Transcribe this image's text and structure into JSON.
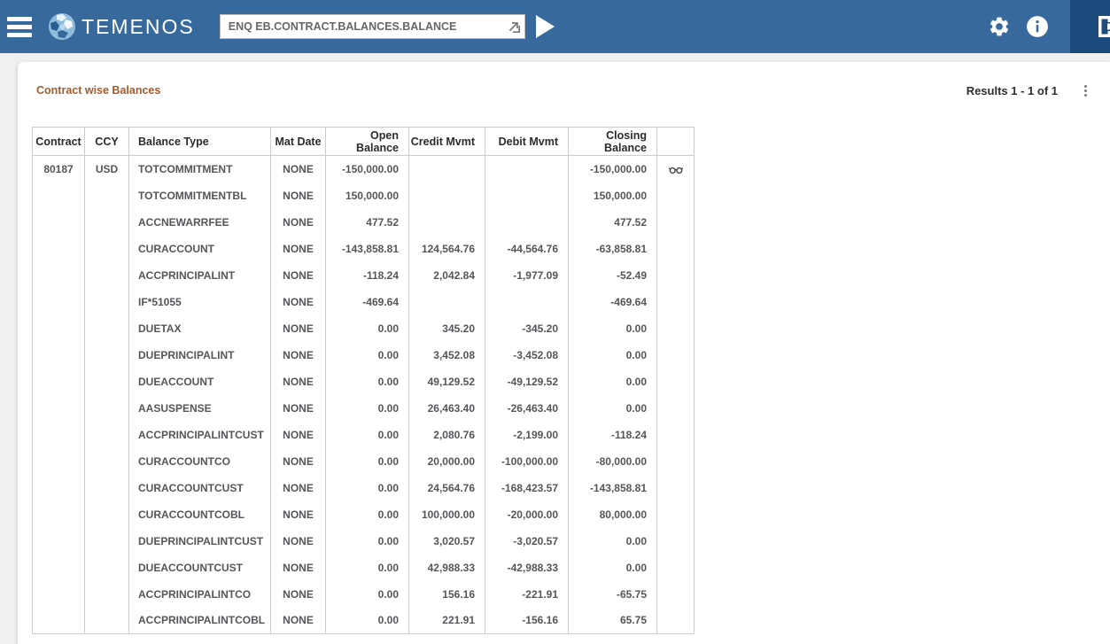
{
  "colors": {
    "header-bar": "#38699c",
    "panel-dark": "#1b4b7d",
    "title-color": "#a55b2b",
    "border-color": "#cccccc",
    "cell-text": "#54565a"
  },
  "header": {
    "brand": "TEMENOS",
    "command_input": {
      "value": "ENQ EB.CONTRACT.BALANCES.BALANCE",
      "placeholder": ""
    },
    "icons": [
      "hamburger-menu-icon",
      "globe-logo-icon",
      "launch-command-icon",
      "run-play-icon",
      "gear-icon",
      "info-icon",
      "logout-icon"
    ]
  },
  "toolbar": {
    "title": "Contract wise Balances",
    "results_label": "Results 1 - 1 of 1",
    "icons": [
      "kebab-menu-icon"
    ]
  },
  "table": {
    "columns": [
      "Contract",
      "CCY",
      "Balance Type",
      "Mat Date",
      "Open Balance",
      "Credit Mvmt",
      "Debit Mvmt",
      "Closing Balance",
      ""
    ],
    "column_aligns": [
      "ac",
      "ac",
      "al",
      "ac",
      "ar",
      "ar",
      "ar",
      "ar",
      "ic"
    ],
    "rows": [
      {
        "contract": "80187",
        "ccy": "USD",
        "balance_type": "TOTCOMMITMENT",
        "mat_date": "NONE",
        "open_balance": "-150,000.00",
        "credit_mvmt": "",
        "debit_mvmt": "",
        "closing_balance": "-150,000.00",
        "has_view_icon": true
      },
      {
        "contract": "",
        "ccy": "",
        "balance_type": "TOTCOMMITMENTBL",
        "mat_date": "NONE",
        "open_balance": "150,000.00",
        "credit_mvmt": "",
        "debit_mvmt": "",
        "closing_balance": "150,000.00",
        "has_view_icon": false
      },
      {
        "contract": "",
        "ccy": "",
        "balance_type": "ACCNEWARRFEE",
        "mat_date": "NONE",
        "open_balance": "477.52",
        "credit_mvmt": "",
        "debit_mvmt": "",
        "closing_balance": "477.52",
        "has_view_icon": false
      },
      {
        "contract": "",
        "ccy": "",
        "balance_type": "CURACCOUNT",
        "mat_date": "NONE",
        "open_balance": "-143,858.81",
        "credit_mvmt": "124,564.76",
        "debit_mvmt": "-44,564.76",
        "closing_balance": "-63,858.81",
        "has_view_icon": false
      },
      {
        "contract": "",
        "ccy": "",
        "balance_type": "ACCPRINCIPALINT",
        "mat_date": "NONE",
        "open_balance": "-118.24",
        "credit_mvmt": "2,042.84",
        "debit_mvmt": "-1,977.09",
        "closing_balance": "-52.49",
        "has_view_icon": false
      },
      {
        "contract": "",
        "ccy": "",
        "balance_type": "IF*51055",
        "mat_date": "NONE",
        "open_balance": "-469.64",
        "credit_mvmt": "",
        "debit_mvmt": "",
        "closing_balance": "-469.64",
        "has_view_icon": false
      },
      {
        "contract": "",
        "ccy": "",
        "balance_type": "DUETAX",
        "mat_date": "NONE",
        "open_balance": "0.00",
        "credit_mvmt": "345.20",
        "debit_mvmt": "-345.20",
        "closing_balance": "0.00",
        "has_view_icon": false
      },
      {
        "contract": "",
        "ccy": "",
        "balance_type": "DUEPRINCIPALINT",
        "mat_date": "NONE",
        "open_balance": "0.00",
        "credit_mvmt": "3,452.08",
        "debit_mvmt": "-3,452.08",
        "closing_balance": "0.00",
        "has_view_icon": false
      },
      {
        "contract": "",
        "ccy": "",
        "balance_type": "DUEACCOUNT",
        "mat_date": "NONE",
        "open_balance": "0.00",
        "credit_mvmt": "49,129.52",
        "debit_mvmt": "-49,129.52",
        "closing_balance": "0.00",
        "has_view_icon": false
      },
      {
        "contract": "",
        "ccy": "",
        "balance_type": "AASUSPENSE",
        "mat_date": "NONE",
        "open_balance": "0.00",
        "credit_mvmt": "26,463.40",
        "debit_mvmt": "-26,463.40",
        "closing_balance": "0.00",
        "has_view_icon": false
      },
      {
        "contract": "",
        "ccy": "",
        "balance_type": "ACCPRINCIPALINTCUST",
        "mat_date": "NONE",
        "open_balance": "0.00",
        "credit_mvmt": "2,080.76",
        "debit_mvmt": "-2,199.00",
        "closing_balance": "-118.24",
        "has_view_icon": false
      },
      {
        "contract": "",
        "ccy": "",
        "balance_type": "CURACCOUNTCO",
        "mat_date": "NONE",
        "open_balance": "0.00",
        "credit_mvmt": "20,000.00",
        "debit_mvmt": "-100,000.00",
        "closing_balance": "-80,000.00",
        "has_view_icon": false
      },
      {
        "contract": "",
        "ccy": "",
        "balance_type": "CURACCOUNTCUST",
        "mat_date": "NONE",
        "open_balance": "0.00",
        "credit_mvmt": "24,564.76",
        "debit_mvmt": "-168,423.57",
        "closing_balance": "-143,858.81",
        "has_view_icon": false
      },
      {
        "contract": "",
        "ccy": "",
        "balance_type": "CURACCOUNTCOBL",
        "mat_date": "NONE",
        "open_balance": "0.00",
        "credit_mvmt": "100,000.00",
        "debit_mvmt": "-20,000.00",
        "closing_balance": "80,000.00",
        "has_view_icon": false
      },
      {
        "contract": "",
        "ccy": "",
        "balance_type": "DUEPRINCIPALINTCUST",
        "mat_date": "NONE",
        "open_balance": "0.00",
        "credit_mvmt": "3,020.57",
        "debit_mvmt": "-3,020.57",
        "closing_balance": "0.00",
        "has_view_icon": false
      },
      {
        "contract": "",
        "ccy": "",
        "balance_type": "DUEACCOUNTCUST",
        "mat_date": "NONE",
        "open_balance": "0.00",
        "credit_mvmt": "42,988.33",
        "debit_mvmt": "-42,988.33",
        "closing_balance": "0.00",
        "has_view_icon": false
      },
      {
        "contract": "",
        "ccy": "",
        "balance_type": "ACCPRINCIPALINTCO",
        "mat_date": "NONE",
        "open_balance": "0.00",
        "credit_mvmt": "156.16",
        "debit_mvmt": "-221.91",
        "closing_balance": "-65.75",
        "has_view_icon": false
      },
      {
        "contract": "",
        "ccy": "",
        "balance_type": "ACCPRINCIPALINTCOBL",
        "mat_date": "NONE",
        "open_balance": "0.00",
        "credit_mvmt": "221.91",
        "debit_mvmt": "-156.16",
        "closing_balance": "65.75",
        "has_view_icon": false
      }
    ]
  }
}
